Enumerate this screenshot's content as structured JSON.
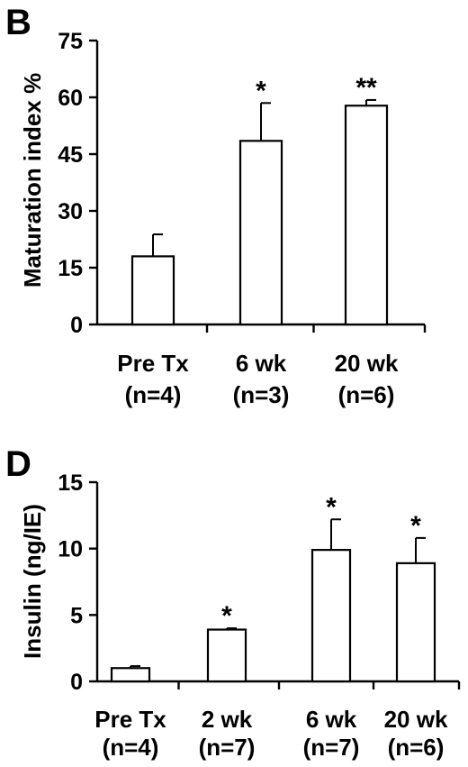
{
  "chart_data": [
    {
      "panel": "B",
      "type": "bar",
      "ylabel": "Maturation index %",
      "ylim": [
        0,
        75
      ],
      "yticks": [
        0,
        15,
        30,
        45,
        60,
        75
      ],
      "categories": [
        "Pre Tx",
        "6 wk",
        "20 wk"
      ],
      "category_n": [
        "(n=4)",
        "(n=3)",
        "(n=6)"
      ],
      "values": [
        18,
        48.5,
        57.8
      ],
      "errors": [
        5.8,
        10,
        1.5
      ],
      "significance": [
        "",
        "*",
        "**"
      ],
      "grid": false
    },
    {
      "panel": "D",
      "type": "bar",
      "ylabel": "Insulin (ng/IE)",
      "ylim": [
        0,
        15
      ],
      "yticks": [
        0,
        5,
        10,
        15
      ],
      "categories": [
        "Pre Tx",
        "2 wk",
        "6 wk",
        "20 wk"
      ],
      "category_n": [
        "(n=4)",
        "(n=7)",
        "(n=7)",
        "(n=6)"
      ],
      "values": [
        1,
        3.9,
        9.9,
        8.9
      ],
      "errors": [
        0.15,
        0.1,
        2.3,
        1.9
      ],
      "significance": [
        "",
        "*",
        "*",
        "*"
      ],
      "grid": false
    }
  ]
}
